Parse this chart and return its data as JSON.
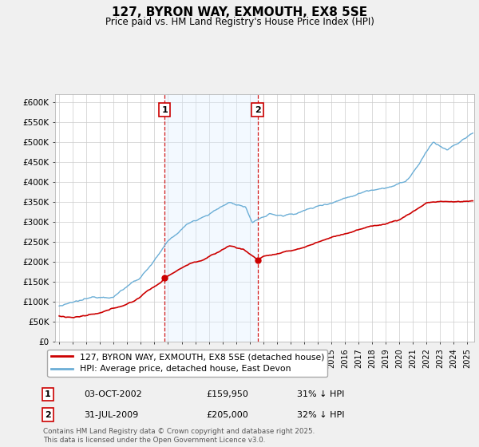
{
  "title": "127, BYRON WAY, EXMOUTH, EX8 5SE",
  "subtitle": "Price paid vs. HM Land Registry's House Price Index (HPI)",
  "ylim": [
    0,
    620000
  ],
  "yticks": [
    0,
    50000,
    100000,
    150000,
    200000,
    250000,
    300000,
    350000,
    400000,
    450000,
    500000,
    550000,
    600000
  ],
  "ytick_labels": [
    "£0",
    "£50K",
    "£100K",
    "£150K",
    "£200K",
    "£250K",
    "£300K",
    "£350K",
    "£400K",
    "£450K",
    "£500K",
    "£550K",
    "£600K"
  ],
  "hpi_color": "#6baed6",
  "price_color": "#cc0000",
  "marker1_x": 2002.75,
  "marker1_y": 159950,
  "marker2_x": 2009.58,
  "marker2_y": 205000,
  "shaded_color": "#ddeeff",
  "vline_color": "#cc0000",
  "legend_label_price": "127, BYRON WAY, EXMOUTH, EX8 5SE (detached house)",
  "legend_label_hpi": "HPI: Average price, detached house, East Devon",
  "table_rows": [
    {
      "num": "1",
      "date": "03-OCT-2002",
      "price": "£159,950",
      "pct": "31% ↓ HPI"
    },
    {
      "num": "2",
      "date": "31-JUL-2009",
      "price": "£205,000",
      "pct": "32% ↓ HPI"
    }
  ],
  "footer": "Contains HM Land Registry data © Crown copyright and database right 2025.\nThis data is licensed under the Open Government Licence v3.0.",
  "bg_color": "#f0f0f0",
  "plot_bg": "#ffffff",
  "xlim_left": 1994.7,
  "xlim_right": 2025.5
}
